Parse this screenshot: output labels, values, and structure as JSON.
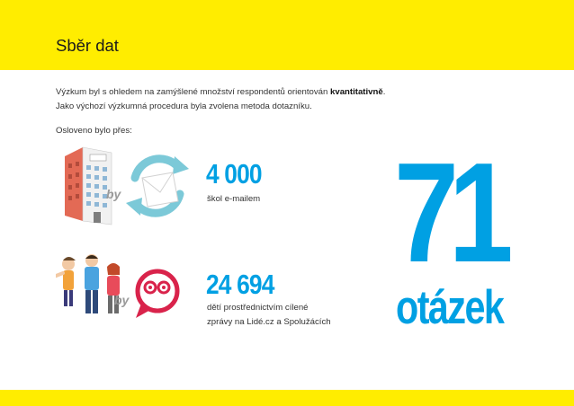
{
  "header": {
    "title": "Sběr dat"
  },
  "intro": {
    "line1_before": "Výzkum byl s ohledem na zamýšlené množství respondentů orientován ",
    "line1_bold": "kvantitativně",
    "line1_after": ".",
    "line2": "Jako výchozí výzkumná procedura byla zvolena metoda dotazníku."
  },
  "contacted_label": "Osloveno bylo přes:",
  "items": [
    {
      "number": "4 000",
      "caption_lines": [
        "škol e-mailem"
      ],
      "by_label": "by",
      "icons": [
        "school-building-icon",
        "email-envelope-icon"
      ]
    },
    {
      "number": "24 694",
      "caption_lines": [
        "dětí prostřednictvím cílené",
        "zprávy na Lidé.cz a Spolužácích"
      ],
      "by_label": "by",
      "icons": [
        "kids-group-icon",
        "chat-bubble-icon"
      ]
    }
  ],
  "questions": {
    "count": "71",
    "label": "otázek"
  },
  "colors": {
    "accent_yellow": "#ffed00",
    "accent_blue": "#00a0e3"
  }
}
